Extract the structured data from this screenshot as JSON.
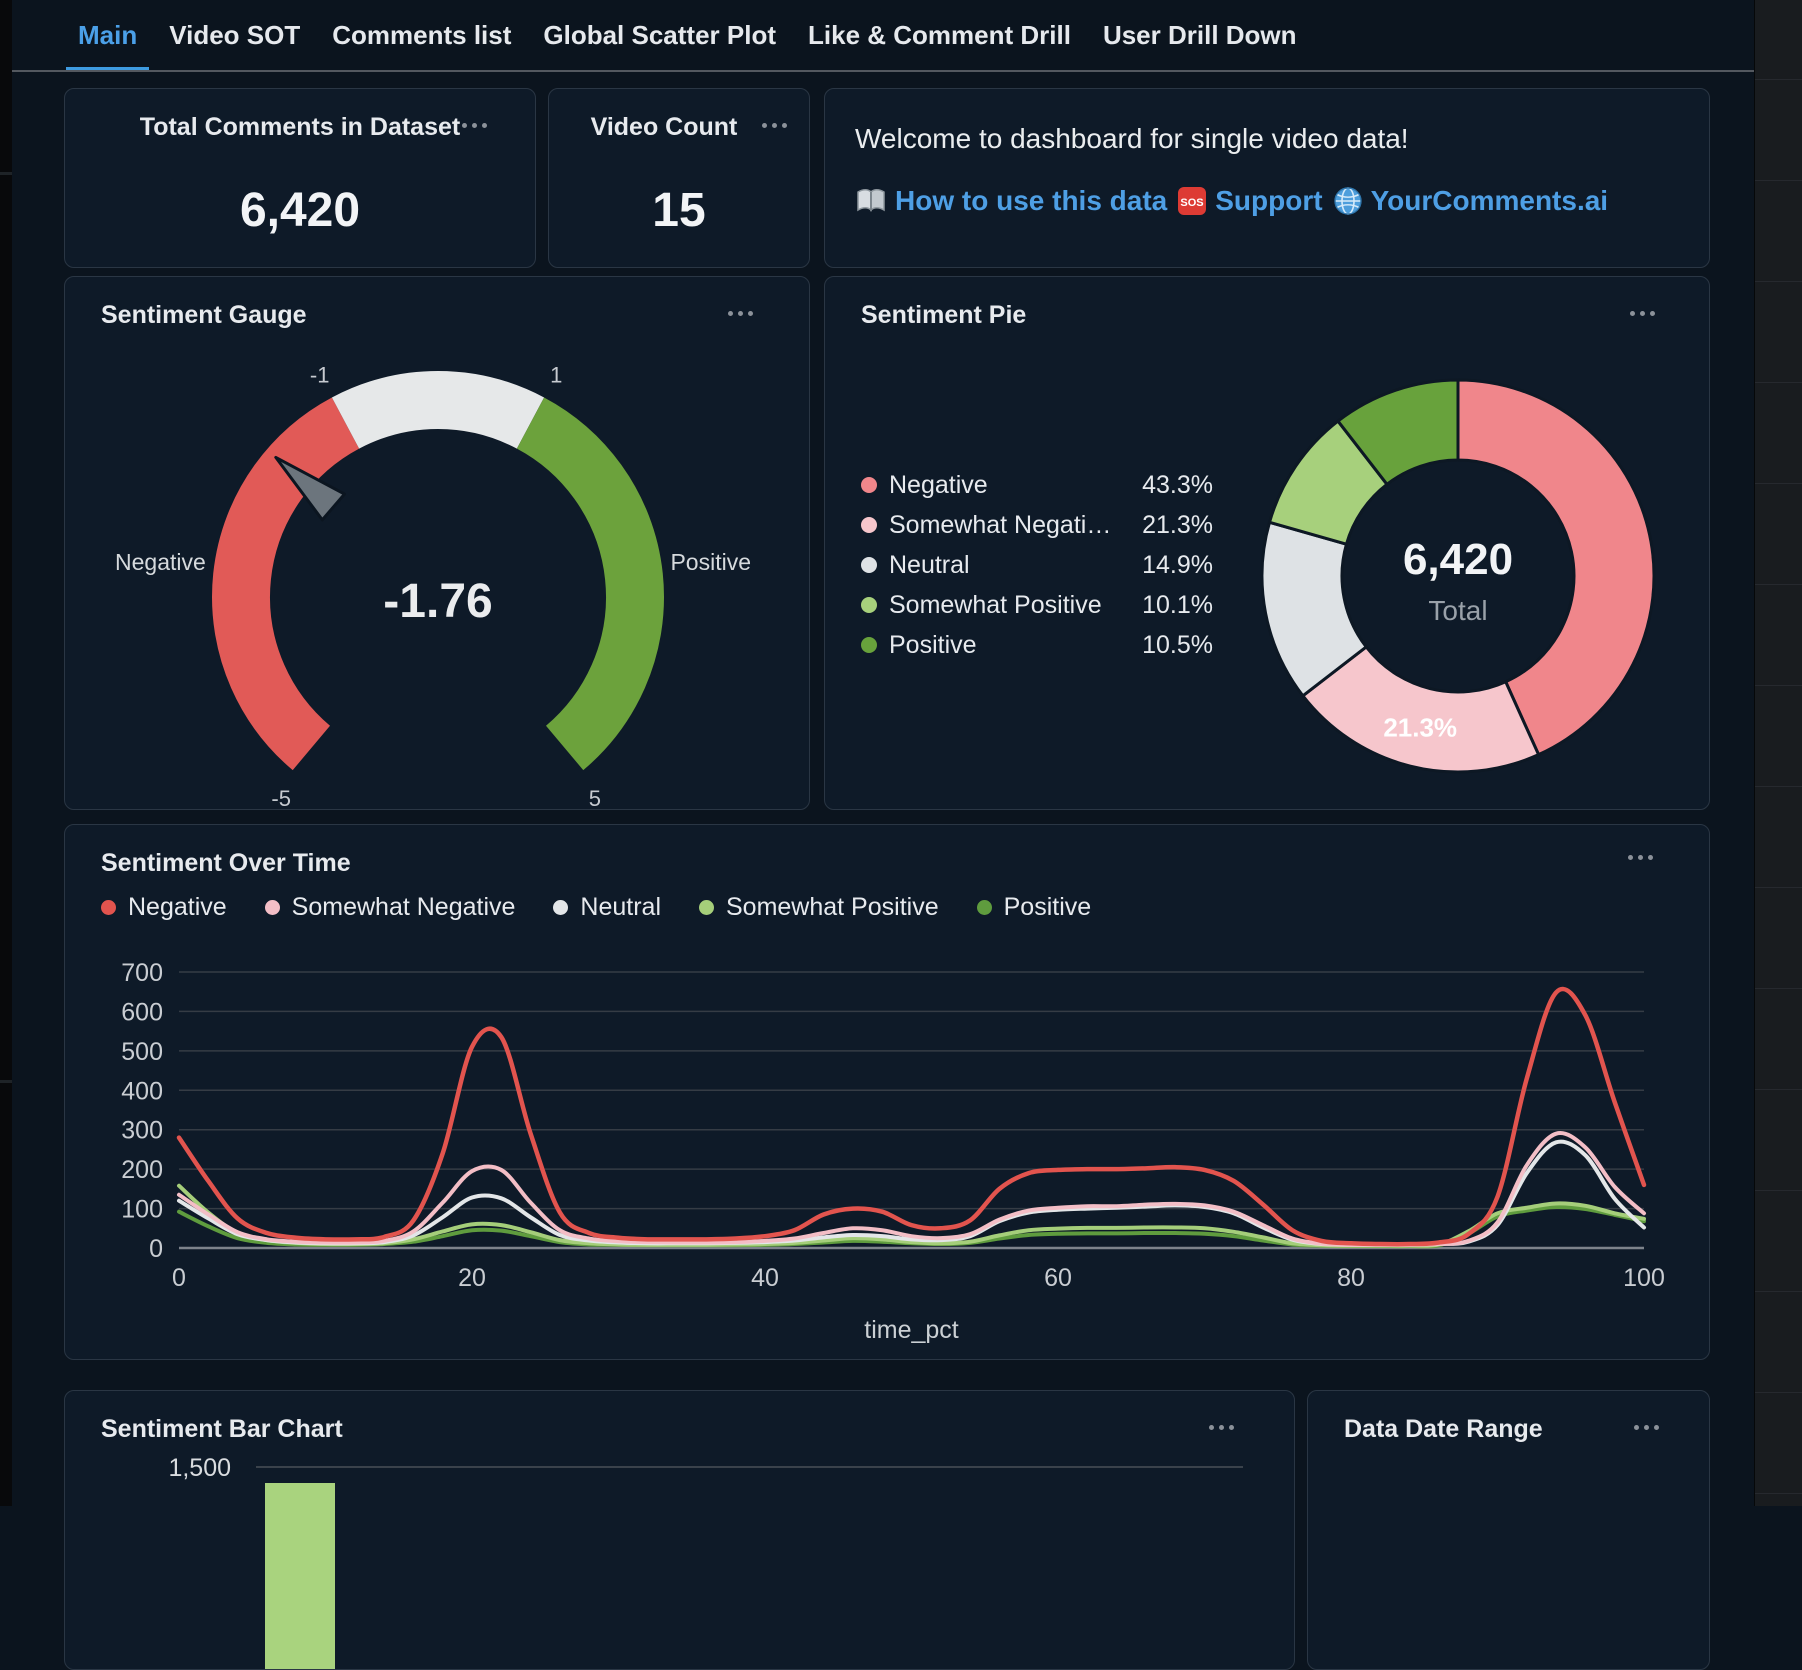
{
  "tabs": [
    {
      "label": "Main",
      "active": true
    },
    {
      "label": "Video SOT",
      "active": false
    },
    {
      "label": "Comments list",
      "active": false
    },
    {
      "label": "Global Scatter Plot",
      "active": false
    },
    {
      "label": "Like & Comment Drill",
      "active": false
    },
    {
      "label": "User Drill Down",
      "active": false
    }
  ],
  "colors": {
    "accent_blue": "#4BA0E8",
    "link_blue": "#4E9FE5",
    "negative": "#E2544E",
    "somewhat_negative": "#F3BEC6",
    "neutral": "#E3E6E8",
    "somewhat_positive": "#A5CE7A",
    "positive": "#5F9C3E"
  },
  "stats": {
    "total_comments": {
      "title": "Total Comments in Dataset",
      "value": "6,420"
    },
    "video_count": {
      "title": "Video Count",
      "value": "15"
    }
  },
  "welcome": {
    "heading": "Welcome to dashboard for single video data!",
    "links": [
      {
        "icon": "book-icon",
        "label": "How to use this data"
      },
      {
        "icon": "sos-icon",
        "icon_text": "SOS",
        "label": "Support"
      },
      {
        "icon": "globe-icon",
        "label": "YourComments.ai"
      }
    ]
  },
  "bottom_row": {
    "bar_panel_title": "Sentiment Bar Chart",
    "date_panel_title": "Data Date Range"
  },
  "chart_data": [
    {
      "type": "gauge",
      "title": "Sentiment Gauge",
      "value": -1.76,
      "value_display": "-1.76",
      "min": -5,
      "max": 5,
      "sweep_deg": 280,
      "ticks": [
        -5,
        -1,
        1,
        5
      ],
      "segments": [
        {
          "from": -5,
          "to": -1,
          "color": "#E15A57"
        },
        {
          "from": -1,
          "to": 1,
          "color": "#E6E8E9"
        },
        {
          "from": 1,
          "to": 5,
          "color": "#6CA23C"
        }
      ],
      "side_labels": {
        "left": "Negative",
        "right": "Positive"
      },
      "needle_color": "#6C757D"
    },
    {
      "type": "pie",
      "title": "Sentiment Pie",
      "center_value": "6,420",
      "center_label": "Total",
      "legend_position": "left",
      "slices": [
        {
          "label": "Negative",
          "legend_label": "Negative",
          "pct": 43.3,
          "pct_display": "43.3%",
          "color": "#F0868B",
          "slice_label": ""
        },
        {
          "label": "Somewhat Negative",
          "legend_label": "Somewhat Negati…",
          "pct": 21.3,
          "pct_display": "21.3%",
          "color": "#F6C6CC",
          "slice_label": "21.3%"
        },
        {
          "label": "Neutral",
          "legend_label": "Neutral",
          "pct": 14.9,
          "pct_display": "14.9%",
          "color": "#DEE2E5",
          "slice_label": ""
        },
        {
          "label": "Somewhat Positive",
          "legend_label": "Somewhat Positive",
          "pct": 10.1,
          "pct_display": "10.1%",
          "color": "#A7D07C",
          "slice_label": ""
        },
        {
          "label": "Positive",
          "legend_label": "Positive",
          "pct": 10.5,
          "pct_display": "10.5%",
          "color": "#68A23C",
          "slice_label": ""
        }
      ]
    },
    {
      "type": "line",
      "title": "Sentiment Over Time",
      "xlabel": "time_pct",
      "ylim": [
        0,
        700
      ],
      "yticks": [
        0,
        100,
        200,
        300,
        400,
        500,
        600,
        700
      ],
      "xticks": [
        0,
        20,
        40,
        60,
        80,
        100
      ],
      "x_start": 0,
      "x_step": 2,
      "grid": true,
      "legend_position": "top",
      "series": [
        {
          "name": "Positive",
          "color": "#5F9C3E",
          "width": 4,
          "values": [
            92,
            55,
            25,
            13,
            9,
            8,
            8,
            10,
            16,
            30,
            45,
            44,
            30,
            15,
            9,
            8,
            7,
            7,
            7,
            7,
            8,
            10,
            14,
            18,
            16,
            12,
            10,
            13,
            24,
            33,
            36,
            37,
            37,
            38,
            38,
            36,
            30,
            19,
            9,
            6,
            5,
            5,
            5,
            7,
            36,
            80,
            95,
            104,
            99,
            84,
            68
          ]
        },
        {
          "name": "Somewhat Positive",
          "color": "#A5CE7A",
          "width": 4,
          "values": [
            158,
            90,
            38,
            20,
            13,
            10,
            10,
            12,
            22,
            42,
            60,
            58,
            40,
            20,
            12,
            9,
            8,
            8,
            8,
            9,
            10,
            13,
            19,
            25,
            22,
            15,
            12,
            16,
            32,
            45,
            49,
            51,
            51,
            52,
            52,
            50,
            41,
            27,
            12,
            7,
            6,
            6,
            6,
            9,
            42,
            88,
            102,
            113,
            107,
            88,
            74
          ]
        },
        {
          "name": "Neutral",
          "color": "#E3E6E8",
          "width": 4,
          "values": [
            120,
            75,
            35,
            20,
            14,
            12,
            12,
            15,
            32,
            78,
            128,
            126,
            78,
            33,
            19,
            14,
            12,
            12,
            12,
            13,
            15,
            19,
            27,
            33,
            30,
            22,
            20,
            30,
            68,
            90,
            97,
            100,
            102,
            105,
            108,
            104,
            88,
            52,
            21,
            10,
            8,
            8,
            8,
            10,
            16,
            58,
            190,
            268,
            235,
            125,
            52
          ]
        },
        {
          "name": "Somewhat Negative",
          "color": "#F3BEC6",
          "width": 4,
          "values": [
            135,
            85,
            40,
            22,
            16,
            14,
            14,
            18,
            42,
            115,
            195,
            198,
            115,
            45,
            24,
            17,
            15,
            14,
            14,
            15,
            18,
            24,
            38,
            50,
            45,
            30,
            25,
            35,
            72,
            95,
            102,
            106,
            106,
            110,
            112,
            108,
            92,
            58,
            24,
            11,
            8,
            8,
            8,
            10,
            18,
            65,
            210,
            290,
            255,
            155,
            88
          ]
        },
        {
          "name": "Negative",
          "color": "#E2544E",
          "width": 4.5,
          "values": [
            280,
            170,
            75,
            38,
            26,
            22,
            22,
            28,
            70,
            240,
            510,
            535,
            290,
            90,
            38,
            26,
            22,
            22,
            22,
            24,
            30,
            45,
            85,
            100,
            92,
            58,
            50,
            70,
            150,
            190,
            198,
            200,
            200,
            202,
            205,
            198,
            170,
            110,
            45,
            18,
            12,
            10,
            10,
            14,
            35,
            130,
            430,
            648,
            590,
            370,
            160
          ]
        }
      ],
      "legend_order": [
        "Negative",
        "Somewhat Negative",
        "Neutral",
        "Somewhat Positive",
        "Positive"
      ],
      "legend_colors": [
        "#E2544E",
        "#F3BEC6",
        "#E3E6E8",
        "#A5CE7A",
        "#5F9C3E"
      ]
    },
    {
      "type": "bar",
      "title": "Sentiment Bar Chart",
      "ytick_label": "1,500",
      "ytick_value": 1500,
      "clipped": true,
      "bars_visible": [
        {
          "color": "#A9D37E"
        }
      ]
    }
  ]
}
